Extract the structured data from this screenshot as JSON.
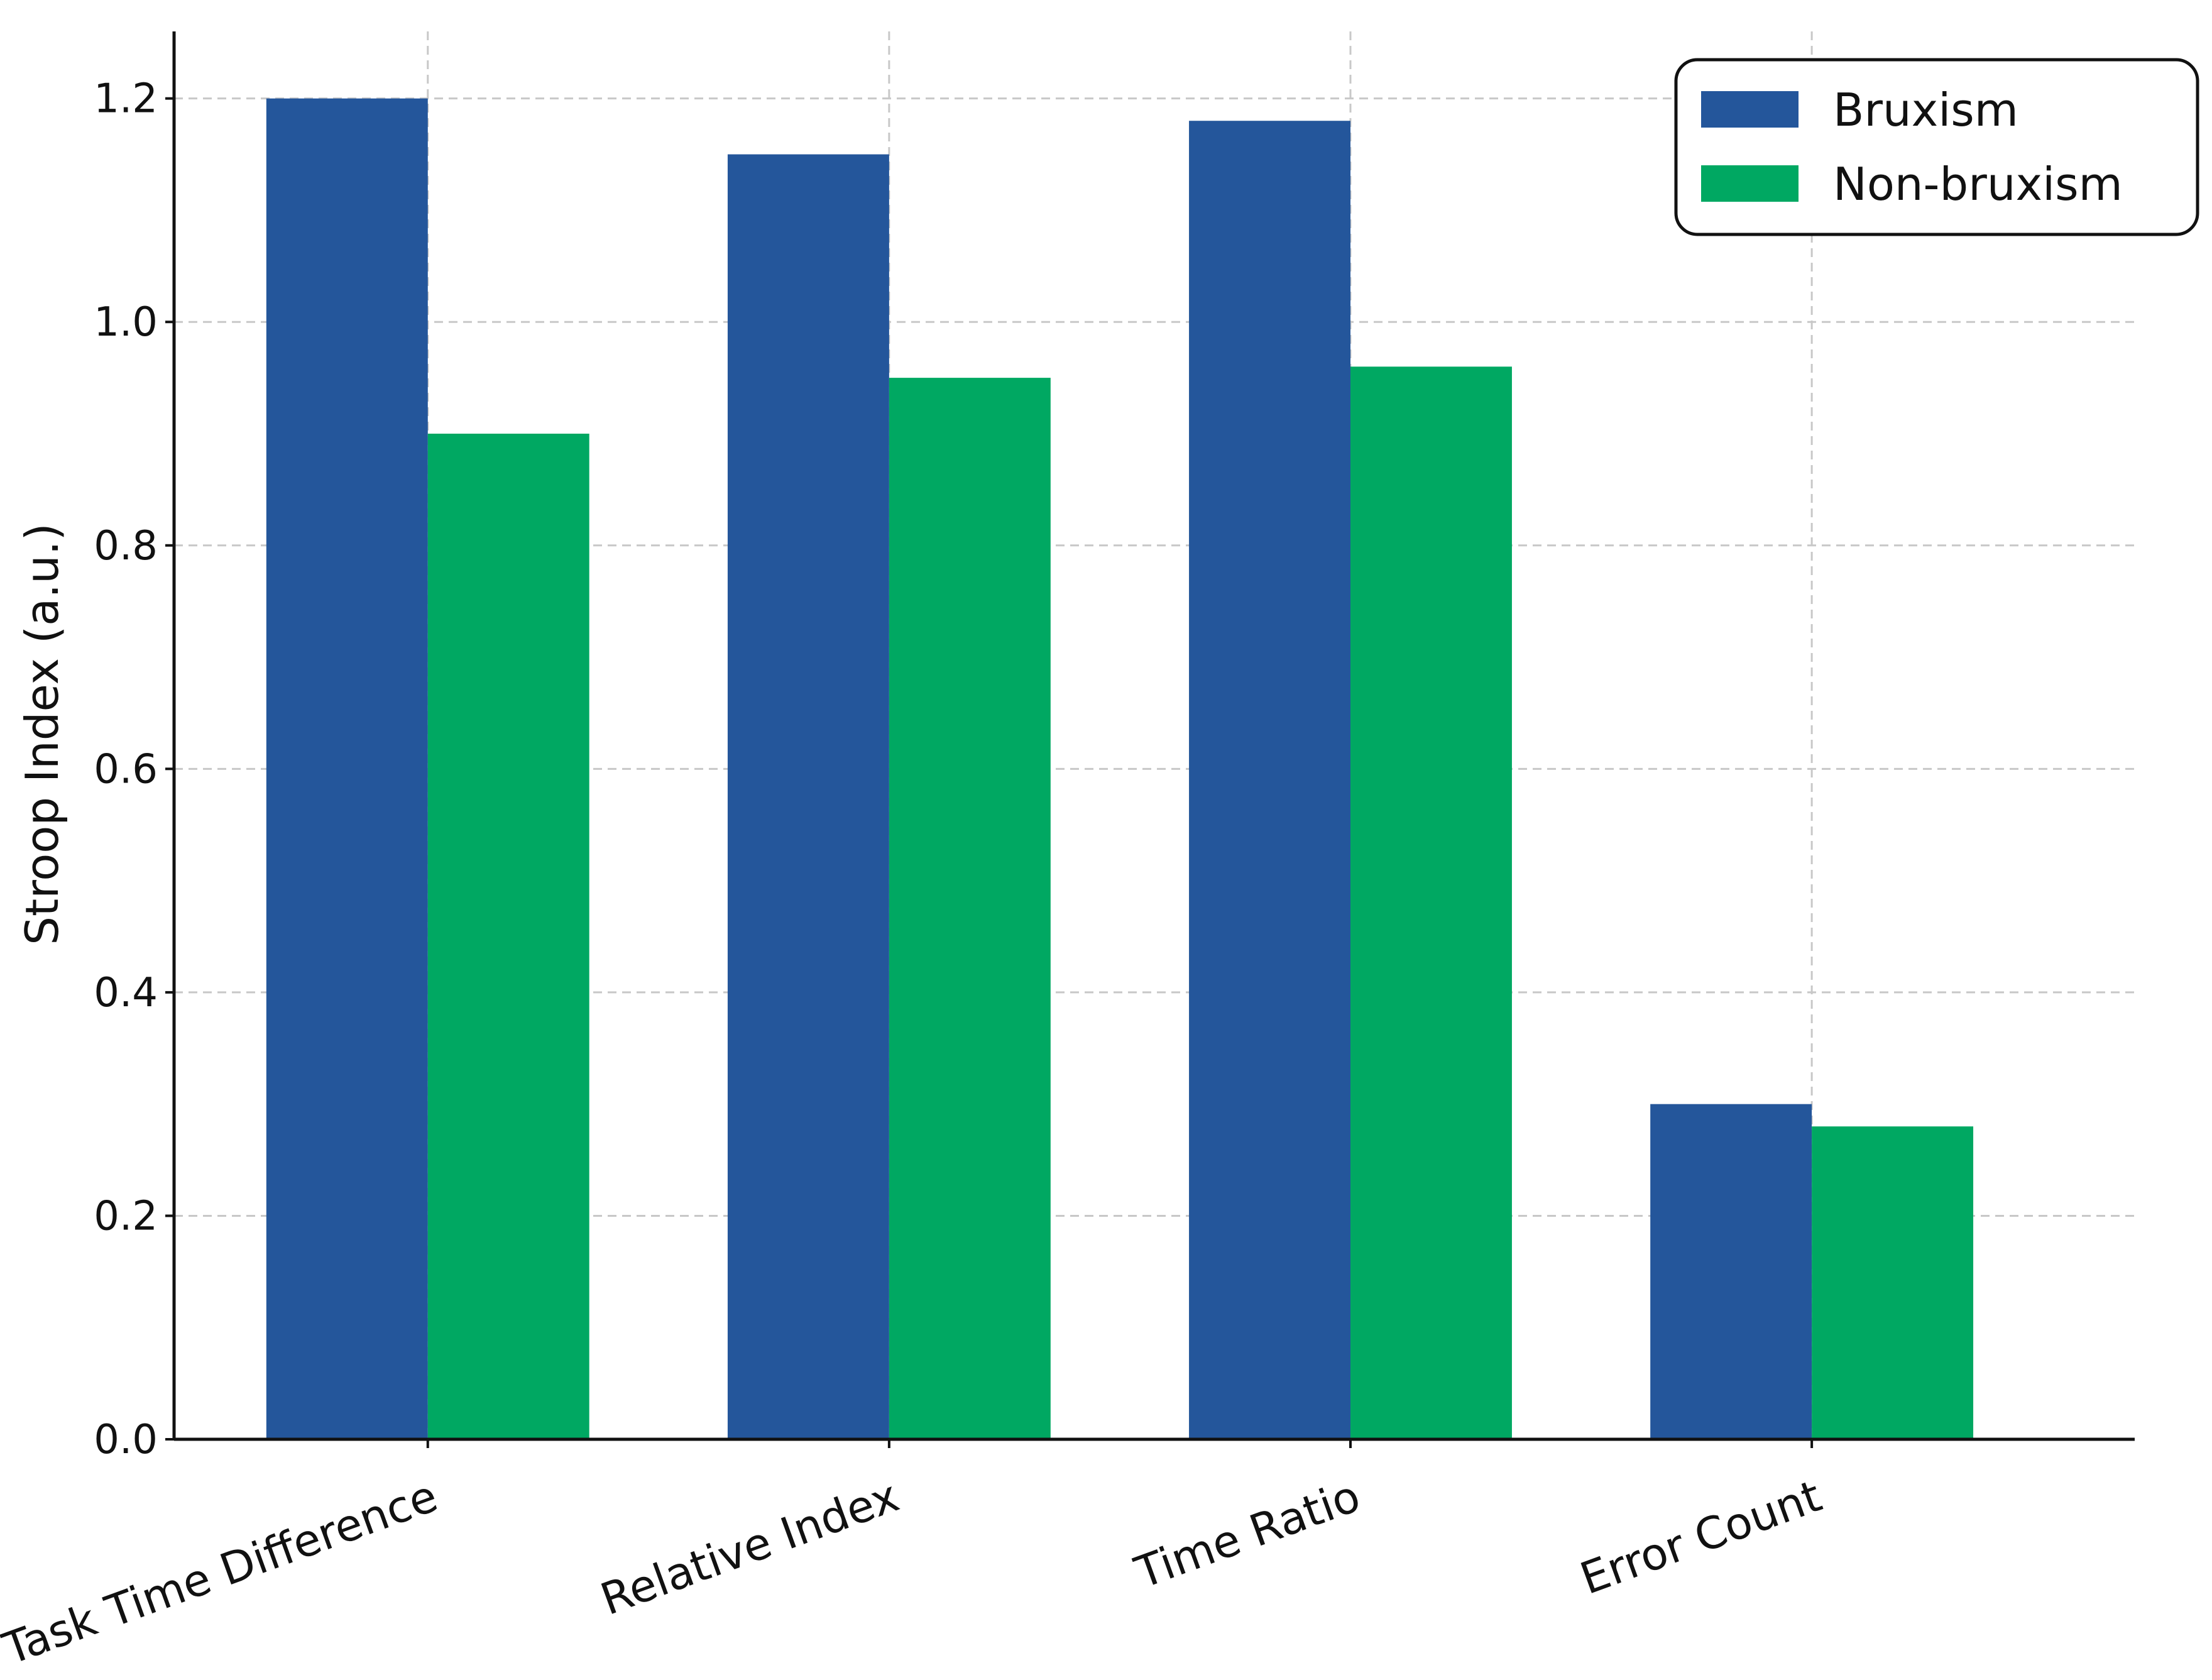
{
  "chart_data": {
    "type": "bar",
    "categories": [
      "Task Time Difference",
      "Relative Index",
      "Time Ratio",
      "Error Count"
    ],
    "series": [
      {
        "name": "Bruxism",
        "color": "#24569b",
        "values": [
          1.2,
          1.15,
          1.18,
          0.3
        ]
      },
      {
        "name": "Non-bruxism",
        "color": "#00a862",
        "values": [
          0.9,
          0.95,
          0.96,
          0.28
        ]
      }
    ],
    "title": "",
    "xlabel": "",
    "ylabel": "Stroop Index (a.u.)",
    "ylim": [
      0,
      1.26
    ],
    "yticks": [
      0.0,
      0.2,
      0.4,
      0.6,
      0.8,
      1.0,
      1.2
    ],
    "ytick_labels": [
      "0.0",
      "0.2",
      "0.4",
      "0.6",
      "0.8",
      "1.0",
      "1.2"
    ],
    "grid": true,
    "legend": {
      "position": "top-right"
    }
  }
}
